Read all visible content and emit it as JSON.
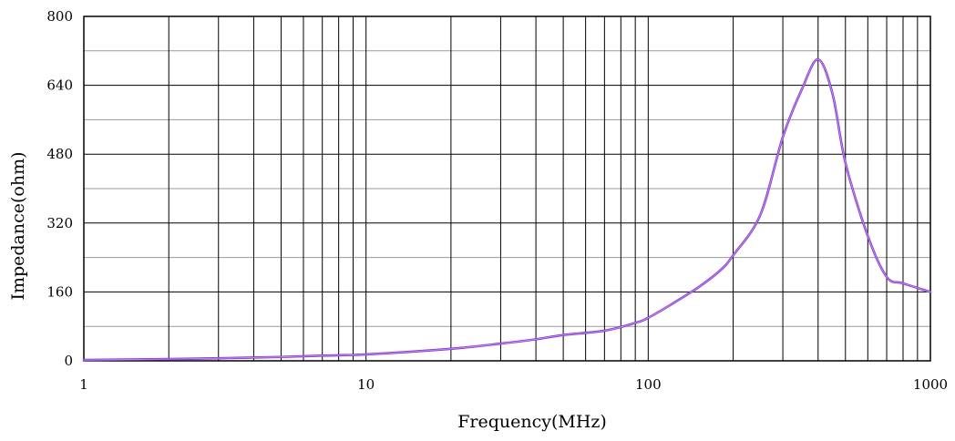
{
  "chart_data": {
    "type": "line",
    "title": "",
    "xlabel": "Frequency(MHz)",
    "ylabel": "Impedance(ohm)",
    "xscale": "log",
    "xlim": [
      1,
      1000
    ],
    "ylim": [
      0,
      800
    ],
    "x_tick_labels": [
      "1",
      "10",
      "100",
      "1000"
    ],
    "y_tick_labels": [
      "0",
      "160",
      "320",
      "480",
      "640",
      "800"
    ],
    "grid": true,
    "legend": "none",
    "colors": {
      "line": "#7b3fd6",
      "line_highlight": "#d98be6",
      "grid_major": "#000000",
      "grid_minor": "#9a9a9a"
    },
    "series": [
      {
        "x": [
          1,
          2,
          3,
          5,
          7,
          10,
          20,
          30,
          40,
          50,
          70,
          90,
          100,
          120,
          150,
          180,
          200,
          250,
          300,
          350,
          400,
          450,
          500,
          600,
          700,
          800,
          1000
        ],
        "y": [
          2,
          4,
          6,
          9,
          12,
          15,
          28,
          40,
          50,
          60,
          70,
          88,
          100,
          130,
          170,
          210,
          245,
          340,
          520,
          630,
          700,
          620,
          460,
          290,
          195,
          180,
          160
        ]
      }
    ]
  }
}
